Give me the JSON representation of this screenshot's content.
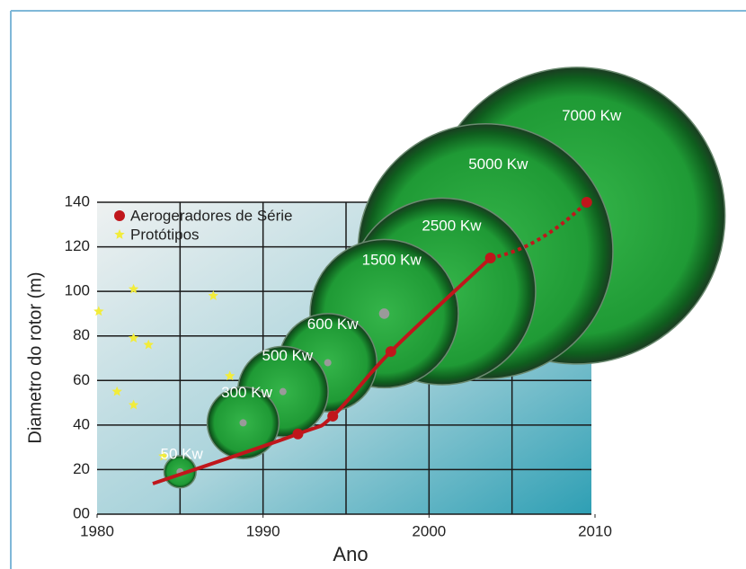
{
  "chart_data": {
    "type": "bubble",
    "x_label": "Ano",
    "y_label": "Diametro do rotor (m)",
    "xlim": [
      1980,
      2010
    ],
    "xticks": [
      1980,
      1990,
      2000,
      2010
    ],
    "ylim": [
      0,
      140
    ],
    "yticks": [
      {
        "value": 0,
        "label": "00"
      },
      20,
      40,
      60,
      80,
      100,
      120,
      140
    ],
    "grid_x": [
      1985,
      1990,
      1995,
      2000,
      2005
    ],
    "grid": true,
    "legend": "upper left",
    "series": [
      {
        "name": "Aerogeradores de Série",
        "color": "#c0161b",
        "x": [
          1992.1,
          1994.2,
          1997.7,
          2003.7,
          2009.5
        ],
        "values": [
          36,
          44,
          73,
          115,
          140
        ]
      },
      {
        "name": "Protótipos",
        "color": "#f2ec3a",
        "x": [
          1980.1,
          1982.2,
          1982.2,
          1983.1,
          1981.2,
          1982.2,
          1984,
          1987,
          1988,
          1989.1
        ],
        "values": [
          91,
          101,
          79,
          76,
          55,
          49,
          26,
          98,
          62,
          62
        ]
      }
    ],
    "bubbles": {
      "x": [
        1985,
        1988.8,
        1991.2,
        1993.9,
        1997.3,
        2000.8,
        2003.4,
        2008.9
      ],
      "values": [
        19,
        41,
        55,
        68,
        90,
        100,
        118,
        134
      ],
      "sizes": [
        50,
        300,
        500,
        600,
        1500,
        2500,
        5000,
        7000
      ],
      "value_labels": [
        "50 Kw",
        "300 Kw",
        "500 Kw",
        "600 Kw",
        "1500 Kw",
        "2500 Kw",
        "5000 Kw",
        "7000 Kw"
      ]
    }
  }
}
